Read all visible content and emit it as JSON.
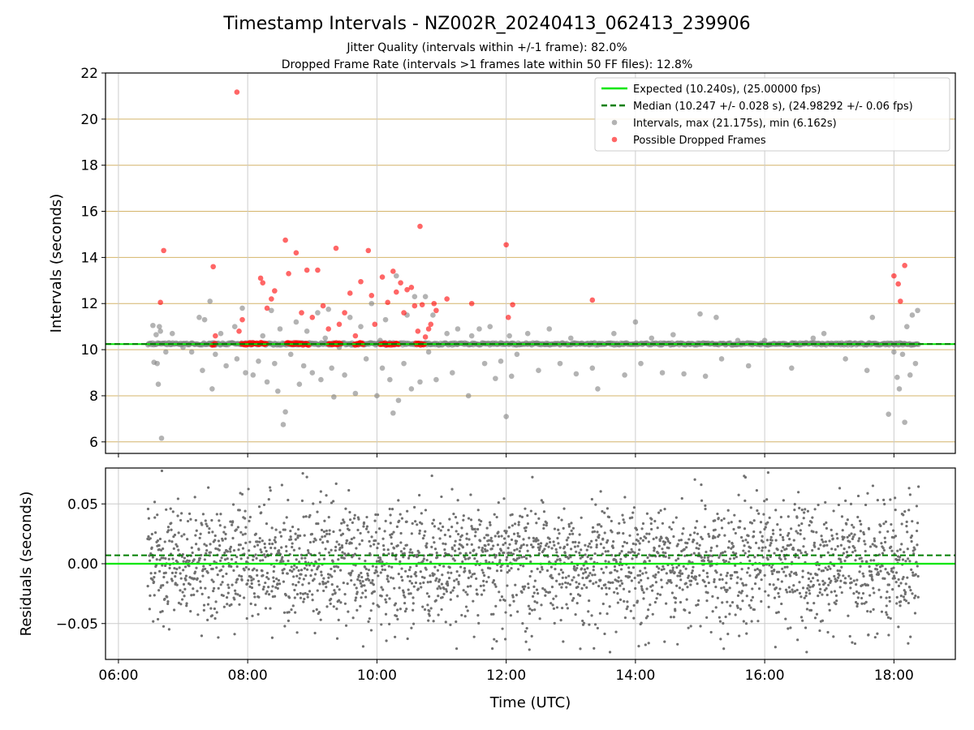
{
  "title": "Timestamp Intervals - NZ002R_20240413_062413_239906",
  "subtitle_1": "Jitter Quality (intervals within +/-1 frame): 82.0%",
  "subtitle_2": "Dropped Frame Rate (intervals >1 frames late within 50 FF files): 12.8%",
  "colors": {
    "expected": "#00e600",
    "median": "#007f00",
    "intervals": "#808080",
    "dropped": "#ff0000",
    "top_grid": "#d4b46a",
    "grid": "#cccccc"
  },
  "chart_data": [
    {
      "type": "scatter",
      "ylabel": "Intervals (seconds)",
      "xlim": [
        "05:48",
        "18:57"
      ],
      "ylim": [
        5.5,
        22
      ],
      "yticks": [
        "6",
        "8",
        "10",
        "12",
        "14",
        "16",
        "18",
        "20",
        "22"
      ],
      "xticks": [
        "06:00",
        "08:00",
        "10:00",
        "12:00",
        "14:00",
        "16:00",
        "18:00"
      ],
      "grid": true,
      "legend_position": "top-right",
      "legend": [
        "Expected (10.240s), (25.00000 fps)",
        "Median (10.247 +/- 0.028 s), (24.98292 +/- 0.06 fps)",
        "Intervals, max (21.175s), min (6.162s)",
        "Possible Dropped Frames"
      ],
      "expected_interval": 10.24,
      "median_interval": 10.247,
      "time_range": [
        "06:27",
        "18:23"
      ],
      "baseline_band": [
        10.2,
        10.3
      ],
      "intervals_outliers": [
        [
          "06:32",
          11.05
        ],
        [
          "06:33",
          9.45
        ],
        [
          "06:35",
          10.65
        ],
        [
          "06:36",
          9.4
        ],
        [
          "06:37",
          8.5
        ],
        [
          "06:38",
          11.0
        ],
        [
          "06:39",
          10.8
        ],
        [
          "06:40",
          6.16
        ],
        [
          "06:44",
          9.9
        ],
        [
          "06:50",
          10.7
        ],
        [
          "07:00",
          10.1
        ],
        [
          "07:08",
          9.9
        ],
        [
          "07:15",
          11.4
        ],
        [
          "07:18",
          9.1
        ],
        [
          "07:20",
          11.3
        ],
        [
          "07:25",
          12.1
        ],
        [
          "07:27",
          8.3
        ],
        [
          "07:30",
          9.8
        ],
        [
          "07:35",
          10.7
        ],
        [
          "07:40",
          9.3
        ],
        [
          "07:48",
          11.0
        ],
        [
          "07:50",
          9.6
        ],
        [
          "07:55",
          11.8
        ],
        [
          "07:58",
          9.0
        ],
        [
          "08:05",
          8.9
        ],
        [
          "08:10",
          9.5
        ],
        [
          "08:14",
          10.6
        ],
        [
          "08:18",
          8.6
        ],
        [
          "08:22",
          11.7
        ],
        [
          "08:25",
          9.4
        ],
        [
          "08:28",
          8.2
        ],
        [
          "08:30",
          10.9
        ],
        [
          "08:33",
          6.75
        ],
        [
          "08:35",
          7.3
        ],
        [
          "08:40",
          9.8
        ],
        [
          "08:45",
          11.2
        ],
        [
          "08:48",
          8.5
        ],
        [
          "08:52",
          9.3
        ],
        [
          "08:55",
          10.8
        ],
        [
          "09:00",
          9.0
        ],
        [
          "09:05",
          11.6
        ],
        [
          "09:08",
          8.7
        ],
        [
          "09:12",
          10.5
        ],
        [
          "09:15",
          11.75
        ],
        [
          "09:18",
          9.2
        ],
        [
          "09:20",
          7.95
        ],
        [
          "09:25",
          10.1
        ],
        [
          "09:30",
          8.9
        ],
        [
          "09:35",
          11.4
        ],
        [
          "09:40",
          8.1
        ],
        [
          "09:45",
          11.0
        ],
        [
          "09:50",
          9.6
        ],
        [
          "09:55",
          12.0
        ],
        [
          "10:00",
          8.0
        ],
        [
          "10:03",
          10.4
        ],
        [
          "10:05",
          9.2
        ],
        [
          "10:08",
          11.3
        ],
        [
          "10:12",
          8.7
        ],
        [
          "10:15",
          7.25
        ],
        [
          "10:18",
          13.2
        ],
        [
          "10:20",
          7.8
        ],
        [
          "10:25",
          9.4
        ],
        [
          "10:28",
          11.5
        ],
        [
          "10:32",
          8.3
        ],
        [
          "10:35",
          12.3
        ],
        [
          "10:40",
          8.6
        ],
        [
          "10:45",
          12.3
        ],
        [
          "10:48",
          9.9
        ],
        [
          "10:52",
          11.5
        ],
        [
          "10:55",
          8.7
        ],
        [
          "11:05",
          10.7
        ],
        [
          "11:10",
          9.0
        ],
        [
          "11:15",
          10.9
        ],
        [
          "11:25",
          8.0
        ],
        [
          "11:28",
          10.6
        ],
        [
          "11:35",
          10.9
        ],
        [
          "11:40",
          9.4
        ],
        [
          "11:45",
          11.0
        ],
        [
          "11:50",
          8.75
        ],
        [
          "11:55",
          9.5
        ],
        [
          "12:00",
          7.1
        ],
        [
          "12:03",
          10.6
        ],
        [
          "12:05",
          8.85
        ],
        [
          "12:10",
          9.8
        ],
        [
          "12:20",
          10.7
        ],
        [
          "12:30",
          9.1
        ],
        [
          "12:40",
          10.9
        ],
        [
          "12:50",
          9.4
        ],
        [
          "13:00",
          10.5
        ],
        [
          "13:05",
          8.95
        ],
        [
          "13:20",
          9.2
        ],
        [
          "13:25",
          8.3
        ],
        [
          "13:40",
          10.7
        ],
        [
          "13:50",
          8.9
        ],
        [
          "14:00",
          11.2
        ],
        [
          "14:05",
          9.4
        ],
        [
          "14:15",
          10.5
        ],
        [
          "14:25",
          9.0
        ],
        [
          "14:35",
          10.65
        ],
        [
          "14:45",
          8.95
        ],
        [
          "15:00",
          11.55
        ],
        [
          "15:05",
          8.85
        ],
        [
          "15:15",
          11.4
        ],
        [
          "15:20",
          9.6
        ],
        [
          "15:35",
          10.4
        ],
        [
          "15:45",
          9.3
        ],
        [
          "16:00",
          10.4
        ],
        [
          "16:25",
          9.2
        ],
        [
          "16:45",
          10.5
        ],
        [
          "16:55",
          10.7
        ],
        [
          "17:15",
          9.6
        ],
        [
          "17:35",
          9.1
        ],
        [
          "17:40",
          11.4
        ],
        [
          "17:55",
          7.2
        ],
        [
          "18:00",
          9.9
        ],
        [
          "18:03",
          8.8
        ],
        [
          "18:05",
          8.3
        ],
        [
          "18:08",
          9.8
        ],
        [
          "18:10",
          6.85
        ],
        [
          "18:12",
          11.0
        ],
        [
          "18:15",
          8.9
        ],
        [
          "18:17",
          11.5
        ],
        [
          "18:20",
          9.4
        ],
        [
          "18:22",
          11.7
        ]
      ],
      "dropped_frames": [
        [
          "06:39",
          12.05
        ],
        [
          "06:42",
          14.3
        ],
        [
          "07:28",
          13.6
        ],
        [
          "07:30",
          10.6
        ],
        [
          "07:50",
          21.17
        ],
        [
          "07:52",
          10.8
        ],
        [
          "07:55",
          11.3
        ],
        [
          "08:12",
          13.1
        ],
        [
          "08:14",
          12.9
        ],
        [
          "08:18",
          11.8
        ],
        [
          "08:22",
          12.2
        ],
        [
          "08:25",
          12.55
        ],
        [
          "08:35",
          14.75
        ],
        [
          "08:38",
          13.3
        ],
        [
          "08:45",
          14.2
        ],
        [
          "08:50",
          11.6
        ],
        [
          "08:55",
          13.45
        ],
        [
          "09:00",
          11.4
        ],
        [
          "09:05",
          13.45
        ],
        [
          "09:10",
          11.9
        ],
        [
          "09:15",
          10.9
        ],
        [
          "09:22",
          14.4
        ],
        [
          "09:25",
          11.1
        ],
        [
          "09:30",
          11.6
        ],
        [
          "09:35",
          12.45
        ],
        [
          "09:40",
          10.6
        ],
        [
          "09:45",
          12.95
        ],
        [
          "09:52",
          14.3
        ],
        [
          "09:55",
          12.35
        ],
        [
          "09:58",
          11.1
        ],
        [
          "10:05",
          13.15
        ],
        [
          "10:10",
          12.05
        ],
        [
          "10:15",
          13.4
        ],
        [
          "10:18",
          12.5
        ],
        [
          "10:22",
          12.9
        ],
        [
          "10:25",
          11.6
        ],
        [
          "10:28",
          12.6
        ],
        [
          "10:32",
          12.7
        ],
        [
          "10:35",
          11.9
        ],
        [
          "10:38",
          10.8
        ],
        [
          "10:40",
          15.35
        ],
        [
          "10:42",
          11.95
        ],
        [
          "10:45",
          10.55
        ],
        [
          "10:48",
          10.9
        ],
        [
          "10:50",
          11.1
        ],
        [
          "10:53",
          12.0
        ],
        [
          "10:55",
          11.7
        ],
        [
          "11:05",
          12.2
        ],
        [
          "11:28",
          12.0
        ],
        [
          "12:00",
          14.55
        ],
        [
          "12:02",
          11.4
        ],
        [
          "12:06",
          11.95
        ],
        [
          "13:20",
          12.15
        ],
        [
          "18:00",
          13.2
        ],
        [
          "18:04",
          12.85
        ],
        [
          "18:06",
          12.1
        ],
        [
          "18:10",
          13.65
        ]
      ]
    },
    {
      "type": "scatter",
      "xlabel": "Time (UTC)",
      "ylabel": "Residuals (seconds)",
      "xlim": [
        "05:48",
        "18:57"
      ],
      "ylim": [
        -0.08,
        0.08
      ],
      "yticks": [
        "−0.05",
        "0.00",
        "0.05"
      ],
      "xticks": [
        "06:00",
        "08:00",
        "10:00",
        "12:00",
        "14:00",
        "16:00",
        "18:00"
      ],
      "grid": true,
      "expected_residual": 0.0,
      "median_residual": 0.007,
      "time_range": [
        "06:27",
        "18:23"
      ],
      "residual_spread": [
        -0.075,
        0.078
      ]
    }
  ]
}
